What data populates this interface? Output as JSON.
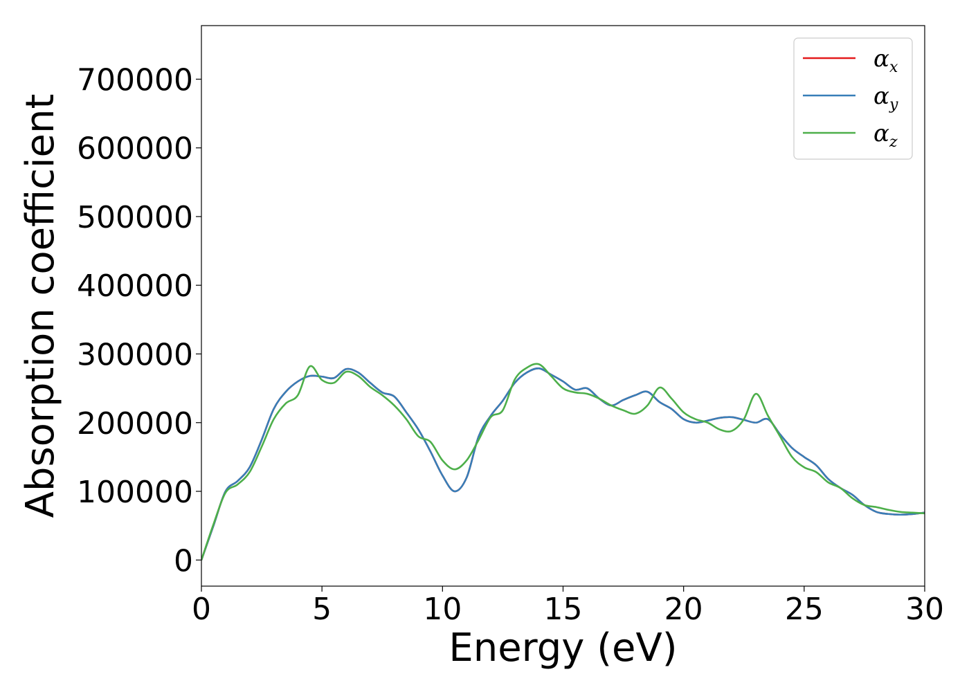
{
  "chart_data": {
    "type": "line",
    "title": "",
    "xlabel": "Energy (eV)",
    "ylabel": "Absorption coefficient",
    "xlim": [
      0,
      30
    ],
    "ylim": [
      -38000,
      778000
    ],
    "xticks": [
      0,
      5,
      10,
      15,
      20,
      25,
      30
    ],
    "xtick_labels": [
      "0",
      "5",
      "10",
      "15",
      "20",
      "25",
      "30"
    ],
    "yticks": [
      0,
      100000,
      200000,
      300000,
      400000,
      500000,
      600000,
      700000
    ],
    "ytick_labels": [
      "0",
      "100000",
      "200000",
      "300000",
      "400000",
      "500000",
      "600000",
      "700000"
    ],
    "grid": false,
    "legend_position": "top-right",
    "x": [
      0,
      0.5,
      1,
      1.5,
      2,
      2.5,
      3,
      3.5,
      4,
      4.5,
      5,
      5.5,
      6,
      6.5,
      7,
      7.5,
      8,
      8.5,
      9,
      9.5,
      10,
      10.5,
      11,
      11.5,
      12,
      12.5,
      13,
      13.5,
      14,
      14.5,
      15,
      15.5,
      16,
      16.5,
      17,
      17.5,
      18,
      18.5,
      19,
      19.5,
      20,
      20.5,
      21,
      21.5,
      22,
      22.5,
      23,
      23.5,
      24,
      24.5,
      25,
      25.5,
      26,
      26.5,
      27,
      27.5,
      28,
      28.5,
      29,
      29.5,
      30
    ],
    "series": [
      {
        "name": "α",
        "subscript": "x",
        "color": "#e41a1c",
        "values": [
          0,
          50000,
          100000,
          115000,
          135000,
          175000,
          220000,
          245000,
          260000,
          268000,
          267000,
          265000,
          278000,
          273000,
          258000,
          244000,
          238000,
          215000,
          190000,
          158000,
          123000,
          100000,
          120000,
          180000,
          210000,
          232000,
          258000,
          273000,
          279000,
          270000,
          260000,
          248000,
          250000,
          235000,
          225000,
          233000,
          240000,
          245000,
          230000,
          220000,
          205000,
          200000,
          203000,
          207000,
          208000,
          204000,
          200000,
          205000,
          183000,
          163000,
          150000,
          138000,
          118000,
          105000,
          95000,
          80000,
          70000,
          67000,
          66000,
          67000,
          69000
        ]
      },
      {
        "name": "α",
        "subscript": "y",
        "color": "#377eb8",
        "values": [
          0,
          50000,
          100000,
          115000,
          135000,
          175000,
          220000,
          245000,
          260000,
          268000,
          267000,
          265000,
          278000,
          273000,
          258000,
          244000,
          238000,
          215000,
          190000,
          158000,
          123000,
          100000,
          120000,
          180000,
          210000,
          232000,
          258000,
          273000,
          279000,
          270000,
          260000,
          248000,
          250000,
          235000,
          225000,
          233000,
          240000,
          245000,
          230000,
          220000,
          205000,
          200000,
          203000,
          207000,
          208000,
          204000,
          200000,
          205000,
          183000,
          163000,
          150000,
          138000,
          118000,
          105000,
          95000,
          80000,
          70000,
          67000,
          66000,
          67000,
          69000
        ]
      },
      {
        "name": "α",
        "subscript": "z",
        "color": "#4daf4a",
        "values": [
          0,
          52000,
          98000,
          110000,
          128000,
          165000,
          205000,
          228000,
          240000,
          282000,
          262000,
          258000,
          274000,
          268000,
          252000,
          240000,
          225000,
          205000,
          180000,
          172000,
          145000,
          132000,
          145000,
          175000,
          208000,
          218000,
          263000,
          280000,
          285000,
          268000,
          250000,
          244000,
          242000,
          235000,
          225000,
          218000,
          213000,
          225000,
          251000,
          235000,
          215000,
          205000,
          200000,
          190000,
          188000,
          205000,
          242000,
          210000,
          180000,
          150000,
          135000,
          128000,
          113000,
          105000,
          90000,
          80000,
          77000,
          73000,
          70000,
          69000,
          68000
        ]
      }
    ]
  }
}
